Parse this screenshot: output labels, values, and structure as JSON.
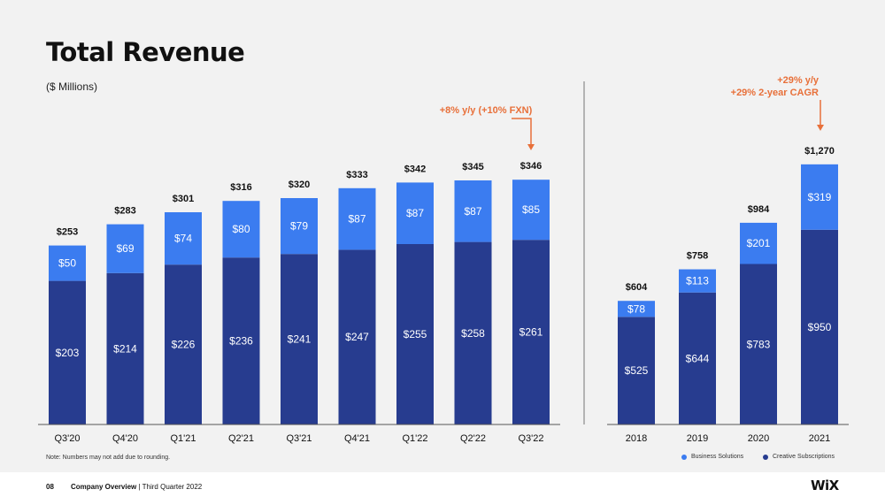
{
  "header": {
    "title": "Total Revenue",
    "subtitle": "($ Millions)"
  },
  "colors": {
    "business": "#3b7cf0",
    "creative": "#273c8f",
    "accent": "#e8703a",
    "divider": "#777777"
  },
  "chart_data": [
    {
      "type": "bar",
      "stacked": true,
      "categories": [
        "Q3'20",
        "Q4'20",
        "Q1'21",
        "Q2'21",
        "Q3'21",
        "Q4'21",
        "Q1'22",
        "Q2'22",
        "Q3'22"
      ],
      "series": [
        {
          "name": "Creative Subscriptions",
          "values": [
            203,
            214,
            226,
            236,
            241,
            247,
            255,
            258,
            261
          ],
          "labels": [
            "$203",
            "$214",
            "$226",
            "$236",
            "$241",
            "$247",
            "$255",
            "$258",
            "$261"
          ]
        },
        {
          "name": "Business Solutions",
          "values": [
            50,
            69,
            74,
            80,
            79,
            87,
            87,
            87,
            85
          ],
          "labels": [
            "$50",
            "$69",
            "$74",
            "$80",
            "$79",
            "$87",
            "$87",
            "$87",
            "$85"
          ]
        }
      ],
      "totals": [
        253,
        283,
        301,
        316,
        320,
        333,
        342,
        345,
        346
      ],
      "total_labels": [
        "$253",
        "$283",
        "$301",
        "$316",
        "$320",
        "$333",
        "$342",
        "$345",
        "$346"
      ],
      "annotation": {
        "text": "+8% y/y (+10% FXN)",
        "category": "Q3'22"
      }
    },
    {
      "type": "bar",
      "stacked": true,
      "categories": [
        "2018",
        "2019",
        "2020",
        "2021"
      ],
      "series": [
        {
          "name": "Creative Subscriptions",
          "values": [
            525,
            644,
            783,
            950
          ],
          "labels": [
            "$525",
            "$644",
            "$783",
            "$950"
          ]
        },
        {
          "name": "Business Solutions",
          "values": [
            78,
            113,
            201,
            319
          ],
          "labels": [
            "$78",
            "$113",
            "$201",
            "$319"
          ]
        }
      ],
      "totals": [
        604,
        758,
        984,
        1270
      ],
      "total_labels": [
        "$604",
        "$758",
        "$984",
        "$1,270"
      ],
      "annotation": {
        "lines": [
          "+29% y/y",
          "+29% 2-year CAGR"
        ],
        "category": "2021"
      }
    }
  ],
  "legend": {
    "business": "Business Solutions",
    "creative": "Creative Subscriptions"
  },
  "note": "Note: Numbers may not add due to rounding.",
  "footer": {
    "page": "08",
    "section": "Company Overview",
    "separator": "|",
    "period": "Third Quarter 2022",
    "logo": "WiX"
  }
}
